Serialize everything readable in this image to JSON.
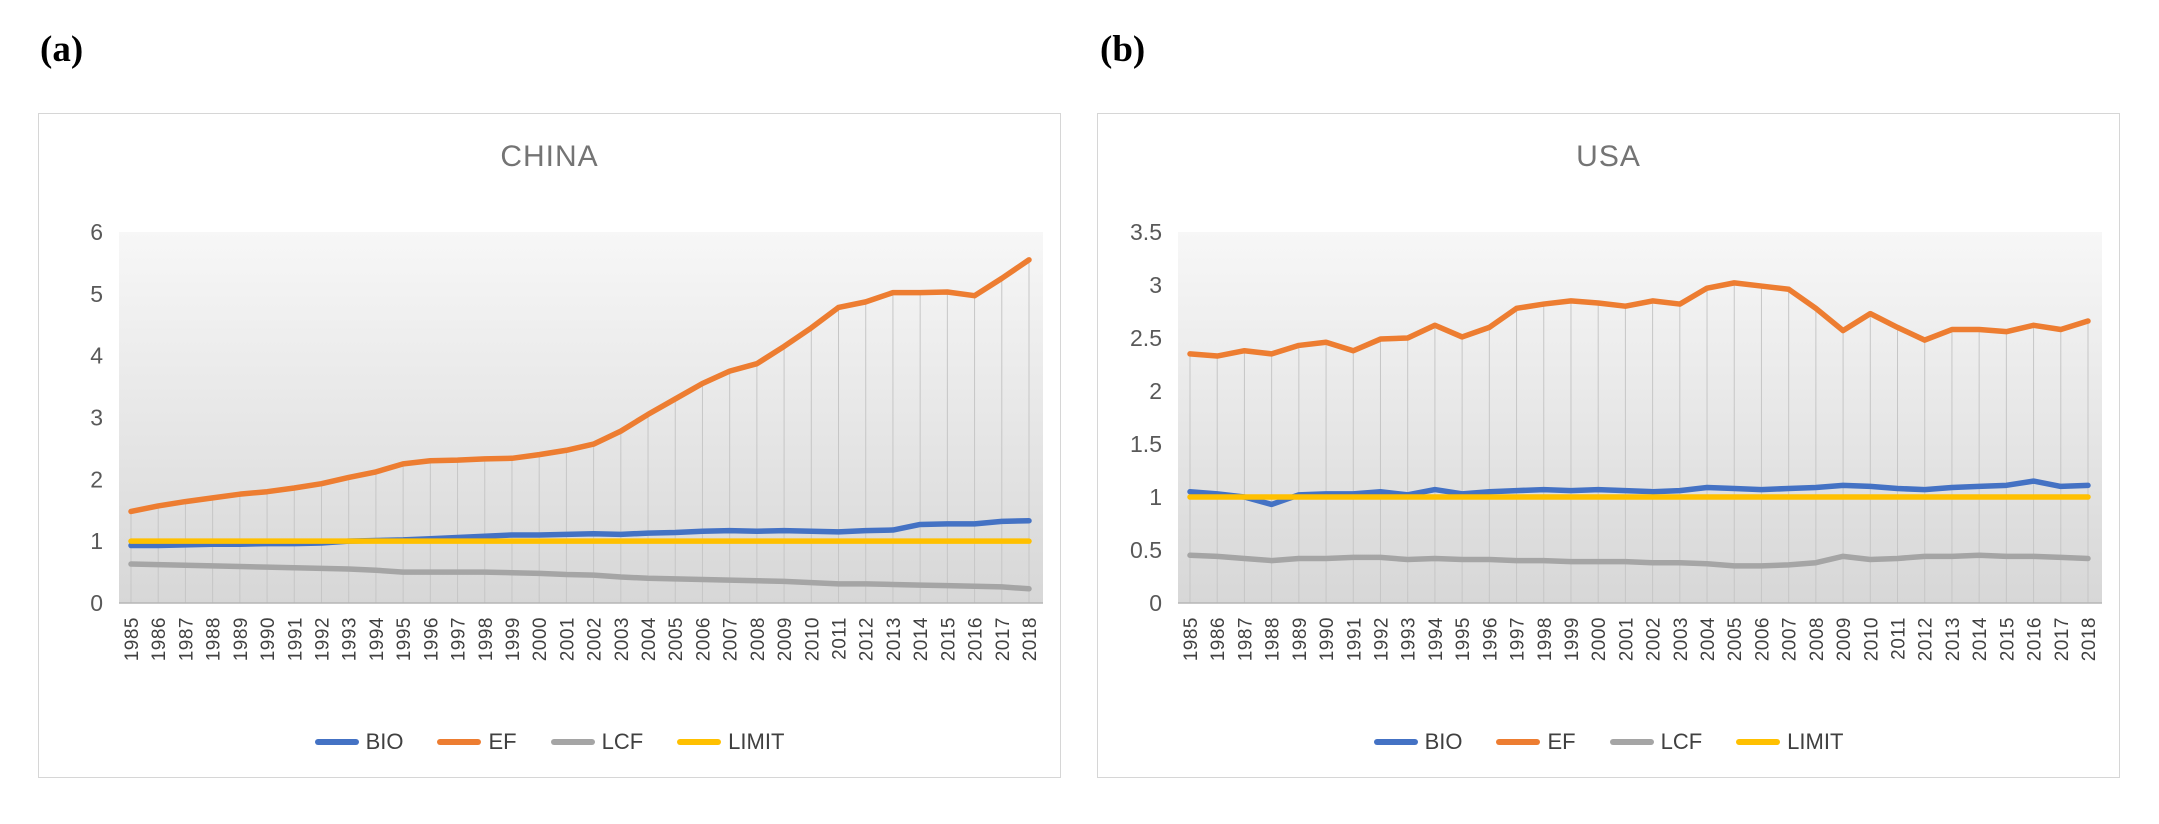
{
  "panels": [
    {
      "label": "(a)"
    },
    {
      "label": "(b)"
    }
  ],
  "colors": {
    "bio": "#4472C4",
    "ef": "#ED7D31",
    "lcf": "#A5A5A5",
    "limit": "#FFC000",
    "title_text": "#747474",
    "ytick_text": "#595959",
    "xtick_text": "#404040",
    "drop_line": "#c6c6c6",
    "axis_line": "#b5b5b5",
    "panel_border": "#d6d6d6",
    "plot_bg_top": "#f7f7f7",
    "plot_bg_bottom": "#d7d7d7"
  },
  "chart_data": [
    {
      "type": "line",
      "title": "CHINA",
      "xlabel": "",
      "ylabel": "",
      "ylim": [
        0,
        6
      ],
      "yticks": [
        "0",
        "1",
        "2",
        "3",
        "4",
        "5",
        "6"
      ],
      "grid": "vertical-drop-lines-from-EF",
      "legend_position": "bottom",
      "categories": [
        "1985",
        "1986",
        "1987",
        "1988",
        "1989",
        "1990",
        "1991",
        "1992",
        "1993",
        "1994",
        "1995",
        "1996",
        "1997",
        "1998",
        "1999",
        "2000",
        "2001",
        "2002",
        "2003",
        "2004",
        "2005",
        "2006",
        "2007",
        "2008",
        "2009",
        "2010",
        "2011",
        "2012",
        "2013",
        "2014",
        "2015",
        "2016",
        "2017",
        "2018"
      ],
      "series": [
        {
          "name": "BIO",
          "color_key": "bio",
          "values": [
            0.93,
            0.93,
            0.94,
            0.95,
            0.95,
            0.96,
            0.96,
            0.97,
            1.0,
            1.01,
            1.02,
            1.04,
            1.06,
            1.08,
            1.1,
            1.1,
            1.11,
            1.12,
            1.11,
            1.13,
            1.14,
            1.16,
            1.17,
            1.16,
            1.17,
            1.16,
            1.15,
            1.17,
            1.18,
            1.27,
            1.28,
            1.28,
            1.32,
            1.33
          ]
        },
        {
          "name": "EF",
          "color_key": "ef",
          "values": [
            1.48,
            1.57,
            1.64,
            1.7,
            1.76,
            1.8,
            1.86,
            1.93,
            2.03,
            2.12,
            2.25,
            2.3,
            2.31,
            2.33,
            2.34,
            2.4,
            2.47,
            2.57,
            2.78,
            3.05,
            3.3,
            3.55,
            3.75,
            3.87,
            4.15,
            4.45,
            4.78,
            4.87,
            5.02,
            5.02,
            5.03,
            4.97,
            5.25,
            5.55
          ]
        },
        {
          "name": "LCF",
          "color_key": "lcf",
          "values": [
            0.63,
            0.62,
            0.61,
            0.6,
            0.59,
            0.58,
            0.57,
            0.56,
            0.55,
            0.53,
            0.5,
            0.5,
            0.5,
            0.5,
            0.49,
            0.48,
            0.46,
            0.45,
            0.42,
            0.4,
            0.39,
            0.38,
            0.37,
            0.36,
            0.35,
            0.33,
            0.31,
            0.31,
            0.3,
            0.29,
            0.28,
            0.27,
            0.26,
            0.23
          ]
        },
        {
          "name": "LIMIT",
          "color_key": "limit",
          "values": [
            1,
            1,
            1,
            1,
            1,
            1,
            1,
            1,
            1,
            1,
            1,
            1,
            1,
            1,
            1,
            1,
            1,
            1,
            1,
            1,
            1,
            1,
            1,
            1,
            1,
            1,
            1,
            1,
            1,
            1,
            1,
            1,
            1,
            1
          ]
        }
      ]
    },
    {
      "type": "line",
      "title": "USA",
      "xlabel": "",
      "ylabel": "",
      "ylim": [
        0,
        3.5
      ],
      "yticks": [
        "0",
        "0.5",
        "1",
        "1.5",
        "2",
        "2.5",
        "3",
        "3.5"
      ],
      "grid": "vertical-drop-lines-from-EF",
      "legend_position": "bottom",
      "categories": [
        "1985",
        "1986",
        "1987",
        "1988",
        "1989",
        "1990",
        "1991",
        "1992",
        "1993",
        "1994",
        "1995",
        "1996",
        "1997",
        "1998",
        "1999",
        "2000",
        "2001",
        "2002",
        "2003",
        "2004",
        "2005",
        "2006",
        "2007",
        "2008",
        "2009",
        "2010",
        "2011",
        "2012",
        "2013",
        "2014",
        "2015",
        "2016",
        "2017",
        "2018"
      ],
      "series": [
        {
          "name": "BIO",
          "color_key": "bio",
          "values": [
            1.05,
            1.03,
            1.0,
            0.93,
            1.02,
            1.03,
            1.03,
            1.05,
            1.02,
            1.07,
            1.03,
            1.05,
            1.06,
            1.07,
            1.06,
            1.07,
            1.06,
            1.05,
            1.06,
            1.09,
            1.08,
            1.07,
            1.08,
            1.09,
            1.11,
            1.1,
            1.08,
            1.07,
            1.09,
            1.1,
            1.11,
            1.15,
            1.1,
            1.11
          ]
        },
        {
          "name": "EF",
          "color_key": "ef",
          "values": [
            2.35,
            2.33,
            2.38,
            2.35,
            2.43,
            2.46,
            2.38,
            2.49,
            2.5,
            2.62,
            2.51,
            2.6,
            2.78,
            2.82,
            2.85,
            2.83,
            2.8,
            2.85,
            2.82,
            2.97,
            3.02,
            2.99,
            2.96,
            2.78,
            2.57,
            2.73,
            2.6,
            2.48,
            2.58,
            2.58,
            2.56,
            2.62,
            2.58,
            2.66
          ]
        },
        {
          "name": "LCF",
          "color_key": "lcf",
          "values": [
            0.45,
            0.44,
            0.42,
            0.4,
            0.42,
            0.42,
            0.43,
            0.43,
            0.41,
            0.42,
            0.41,
            0.41,
            0.4,
            0.4,
            0.39,
            0.39,
            0.39,
            0.38,
            0.38,
            0.37,
            0.35,
            0.35,
            0.36,
            0.38,
            0.44,
            0.41,
            0.42,
            0.44,
            0.44,
            0.45,
            0.44,
            0.44,
            0.43,
            0.42
          ]
        },
        {
          "name": "LIMIT",
          "color_key": "limit",
          "values": [
            1,
            1,
            1,
            1,
            1,
            1,
            1,
            1,
            1,
            1,
            1,
            1,
            1,
            1,
            1,
            1,
            1,
            1,
            1,
            1,
            1,
            1,
            1,
            1,
            1,
            1,
            1,
            1,
            1,
            1,
            1,
            1,
            1,
            1
          ]
        }
      ]
    }
  ]
}
